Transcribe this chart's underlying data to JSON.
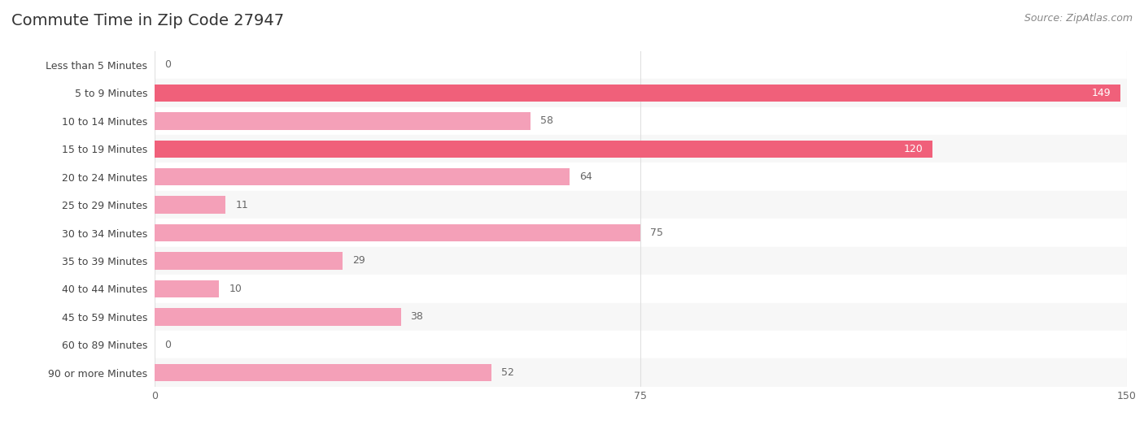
{
  "title": "Commute Time in Zip Code 27947",
  "source": "Source: ZipAtlas.com",
  "categories": [
    "Less than 5 Minutes",
    "5 to 9 Minutes",
    "10 to 14 Minutes",
    "15 to 19 Minutes",
    "20 to 24 Minutes",
    "25 to 29 Minutes",
    "30 to 34 Minutes",
    "35 to 39 Minutes",
    "40 to 44 Minutes",
    "45 to 59 Minutes",
    "60 to 89 Minutes",
    "90 or more Minutes"
  ],
  "values": [
    0,
    149,
    58,
    120,
    64,
    11,
    75,
    29,
    10,
    38,
    0,
    52
  ],
  "xlim": [
    0,
    150
  ],
  "xticks": [
    0,
    75,
    150
  ],
  "bar_color_high": "#f0607a",
  "bar_color_low": "#f4a0b8",
  "bar_color_zero": "#f4c0cc",
  "label_color_inside": "#ffffff",
  "label_color_outside": "#666666",
  "background_color": "#ffffff",
  "row_even_color": "#ffffff",
  "row_odd_color": "#f7f7f7",
  "title_fontsize": 14,
  "source_fontsize": 9,
  "tick_fontsize": 9,
  "value_fontsize": 9,
  "category_fontsize": 9,
  "grid_color": "#e0e0e0",
  "inside_label_threshold": 100,
  "bar_height": 0.62
}
